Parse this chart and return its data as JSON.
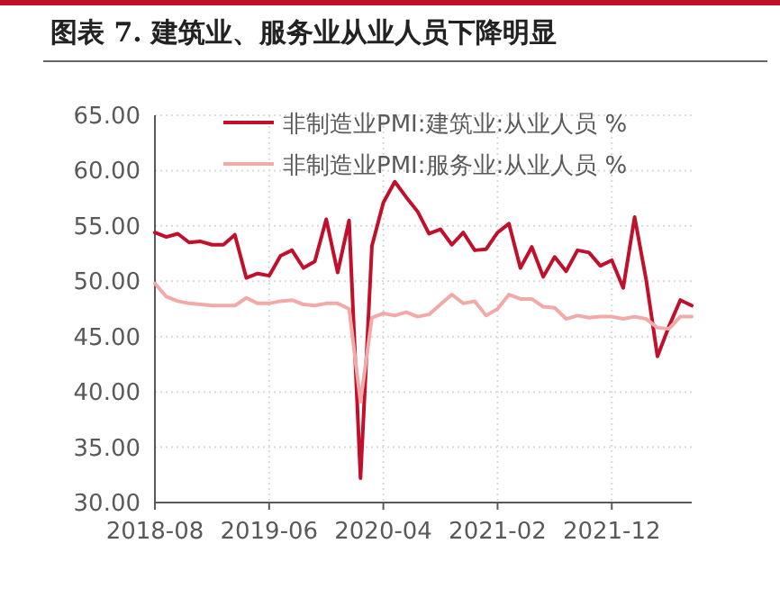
{
  "chart_data": {
    "type": "line",
    "title": "图表 7. 建筑业、服务业从业人员下降明显",
    "x": [
      "2018-08",
      "2018-09",
      "2018-10",
      "2018-11",
      "2018-12",
      "2019-01",
      "2019-02",
      "2019-03",
      "2019-04",
      "2019-05",
      "2019-06",
      "2019-07",
      "2019-08",
      "2019-09",
      "2019-10",
      "2019-11",
      "2019-12",
      "2020-01",
      "2020-02",
      "2020-03",
      "2020-04",
      "2020-05",
      "2020-06",
      "2020-07",
      "2020-08",
      "2020-09",
      "2020-10",
      "2020-11",
      "2020-12",
      "2021-01",
      "2021-02",
      "2021-03",
      "2021-04",
      "2021-05",
      "2021-06",
      "2021-07",
      "2021-08",
      "2021-09",
      "2021-10",
      "2021-11",
      "2021-12",
      "2022-01",
      "2022-02",
      "2022-03",
      "2022-04",
      "2022-05",
      "2022-06",
      "2022-07"
    ],
    "series": [
      {
        "name": "非制造业PMI:建筑业:从业人员 %",
        "color": "#c0102b",
        "values": [
          54.4,
          54.0,
          54.3,
          53.5,
          53.6,
          53.3,
          53.3,
          54.2,
          50.3,
          50.7,
          50.5,
          52.3,
          52.8,
          51.2,
          51.8,
          55.6,
          50.8,
          55.5,
          32.2,
          53.2,
          57.1,
          59.0,
          57.6,
          56.3,
          54.3,
          54.7,
          53.3,
          54.4,
          52.8,
          52.9,
          54.4,
          55.2,
          51.2,
          53.1,
          50.4,
          52.2,
          50.9,
          52.8,
          52.6,
          51.4,
          51.9,
          49.4,
          55.8,
          50.2,
          43.2,
          45.9,
          48.3,
          47.8
        ]
      },
      {
        "name": "非制造业PMI:服务业:从业人员 %",
        "color": "#f2aaa8",
        "values": [
          49.8,
          48.6,
          48.2,
          48.0,
          47.9,
          47.8,
          47.8,
          47.8,
          48.5,
          48.0,
          48.0,
          48.2,
          48.3,
          47.9,
          47.8,
          48.0,
          48.0,
          47.5,
          39.1,
          46.7,
          47.1,
          46.9,
          47.2,
          46.8,
          47.0,
          47.9,
          48.8,
          48.0,
          48.2,
          46.9,
          47.5,
          48.8,
          48.4,
          48.4,
          47.7,
          47.6,
          46.6,
          46.9,
          46.7,
          46.8,
          46.8,
          46.6,
          46.8,
          46.6,
          45.8,
          45.7,
          46.8,
          46.8
        ]
      }
    ],
    "xlim": [
      "2018-08",
      "2022-07"
    ],
    "xticks": [
      "2018-08",
      "2019-06",
      "2020-04",
      "2021-02",
      "2021-12"
    ],
    "ylim": [
      30,
      65
    ],
    "yticks": [
      {
        "value": 30,
        "label": "30.00"
      },
      {
        "value": 35,
        "label": "35.00"
      },
      {
        "value": 40,
        "label": "40.00"
      },
      {
        "value": 45,
        "label": "45.00"
      },
      {
        "value": 50,
        "label": "50.00"
      },
      {
        "value": 55,
        "label": "55.00"
      },
      {
        "value": 60,
        "label": "60.00"
      },
      {
        "value": 65,
        "label": "65.00"
      }
    ],
    "grid": true,
    "legend": "top",
    "marker": "none",
    "line_style": "solid"
  }
}
